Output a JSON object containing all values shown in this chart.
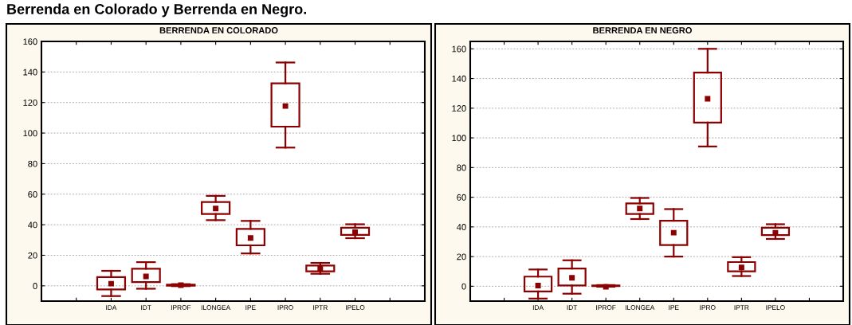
{
  "chart_data": [
    {
      "type": "box",
      "title": "BERRENDA EN COLORADO",
      "annotations": [
        "Berrenda en Colorado y Berrenda en Negro."
      ],
      "categories": [
        null,
        "IDA",
        "IDT",
        "IPROF",
        "ILONGEA",
        "IPE",
        "IPRO",
        "IPTR",
        "IPELO",
        null
      ],
      "color": "#8b0000",
      "ylim": [
        -10,
        160
      ],
      "yticks": [
        0,
        20,
        40,
        60,
        80,
        100,
        120,
        140,
        160
      ],
      "grid": "y",
      "marker": "square",
      "boxes": [
        null,
        {
          "low": -6.7,
          "q1": -2.4,
          "median": 1.4,
          "q3": 5.7,
          "high": 9.8
        },
        {
          "low": -1.9,
          "q1": 2.4,
          "median": 6.2,
          "q3": 11.2,
          "high": 15.5
        },
        {
          "low": -0.2,
          "q1": 0.1,
          "median": 0.4,
          "q3": 0.8,
          "high": 1.1,
          "mean": 0.4
        },
        {
          "low": 43.0,
          "q1": 47.0,
          "median": 50.6,
          "q3": 54.9,
          "high": 58.9
        },
        {
          "low": 21.2,
          "q1": 26.5,
          "median": 31.3,
          "q3": 37.3,
          "high": 42.5
        },
        {
          "low": 90.5,
          "q1": 104.2,
          "median": 117.7,
          "q3": 132.5,
          "high": 146.2
        },
        {
          "low": 7.9,
          "q1": 9.5,
          "median": 11.4,
          "q3": 13.3,
          "high": 15.0
        },
        {
          "low": 31.2,
          "q1": 33.4,
          "median": 35.1,
          "q3": 38.0,
          "high": 40.3
        },
        null
      ]
    },
    {
      "type": "box",
      "title": "BERRENDA EN NEGRO",
      "categories": [
        null,
        "IDA",
        "IDT",
        "IPROF",
        "ILONGEA",
        "IPE",
        "IPRO",
        "IPTR",
        "IPELO",
        null
      ],
      "color": "#8b0000",
      "ylim": [
        -10,
        165
      ],
      "yticks": [
        0,
        20,
        40,
        60,
        80,
        100,
        120,
        140,
        160
      ],
      "grid": "y",
      "marker": "square",
      "boxes": [
        null,
        {
          "low": -8.3,
          "q1": -3.5,
          "median": 0.5,
          "q3": 6.5,
          "high": 11.3
        },
        {
          "low": -5.0,
          "q1": 0.5,
          "median": 5.7,
          "q3": 11.9,
          "high": 17.5
        },
        {
          "low": -0.3,
          "q1": 0.1,
          "median": 0.0,
          "q3": 0.5,
          "high": 0.8,
          "mean": -0.4
        },
        {
          "low": 45.3,
          "q1": 48.7,
          "median": 52.4,
          "q3": 55.8,
          "high": 59.5
        },
        {
          "low": 20.0,
          "q1": 27.8,
          "median": 36.1,
          "q3": 44.2,
          "high": 52.0
        },
        {
          "low": 94.2,
          "q1": 110.3,
          "median": 126.4,
          "q3": 144.0,
          "high": 160.0
        },
        {
          "low": 6.9,
          "q1": 10.1,
          "median": 12.7,
          "q3": 16.3,
          "high": 19.6
        },
        {
          "low": 31.9,
          "q1": 34.5,
          "median": 36.1,
          "q3": 39.5,
          "high": 41.8
        },
        null
      ]
    }
  ]
}
